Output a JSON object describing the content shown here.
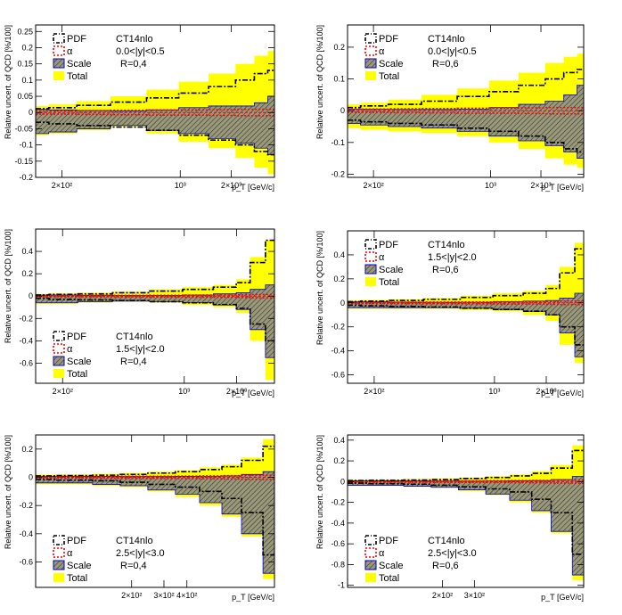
{
  "chart_data": [
    {
      "type": "area",
      "ylabel": "Relative uncert. of QCD [%/100]",
      "xlabel": "p_T [GeV/c]",
      "xscale": "log",
      "xlim": [
        140,
        3600
      ],
      "ylim": [
        -0.2,
        0.27
      ],
      "yticks": [
        "0.25",
        "0.2",
        "0.15",
        "0.1",
        "0.05",
        "0",
        "-0.05",
        "-0.1",
        "-0.15",
        "-0.2"
      ],
      "ytick_values": [
        0.25,
        0.2,
        0.15,
        0.1,
        0.05,
        0,
        -0.05,
        -0.1,
        -0.15,
        -0.2
      ],
      "xticks": [
        "2×10²",
        "10³",
        "2×10³"
      ],
      "xtick_values": [
        200,
        1000,
        2000
      ],
      "legend": [
        "PDF",
        "α",
        "Scale",
        "Total"
      ],
      "pdf_label": "CT14nlo",
      "rapidity": "0.0<|y|<0.5",
      "radius": "R=0,4",
      "legend_position": "top-left",
      "x": [
        140,
        200,
        300,
        500,
        800,
        1200,
        1800,
        2500,
        3000,
        3600
      ],
      "total_up": [
        0.02,
        0.025,
        0.035,
        0.05,
        0.07,
        0.095,
        0.12,
        0.15,
        0.175,
        0.19
      ],
      "total_down": [
        -0.07,
        -0.065,
        -0.055,
        -0.045,
        -0.065,
        -0.09,
        -0.11,
        -0.14,
        -0.17,
        -0.19
      ],
      "pdf_up": [
        0.012,
        0.015,
        0.022,
        0.032,
        0.045,
        0.06,
        0.08,
        0.1,
        0.12,
        0.13
      ],
      "pdf_down": [
        -0.03,
        -0.035,
        -0.04,
        -0.045,
        -0.055,
        -0.07,
        -0.085,
        -0.1,
        -0.12,
        -0.13
      ],
      "scale_up": [
        0.01,
        0.008,
        0.006,
        0.005,
        0.008,
        0.015,
        0.02,
        0.02,
        0.03,
        0.05
      ],
      "scale_down": [
        -0.065,
        -0.06,
        -0.05,
        -0.04,
        -0.055,
        -0.065,
        -0.08,
        -0.095,
        -0.11,
        -0.13
      ],
      "alpha_up": [
        0.005,
        0.005,
        0.006,
        0.007,
        0.008,
        0.008,
        0.009,
        0.01,
        0.01,
        0.01
      ],
      "alpha_down": [
        -0.005,
        -0.005,
        -0.006,
        -0.007,
        -0.008,
        -0.008,
        -0.009,
        -0.01,
        -0.01,
        -0.01
      ]
    },
    {
      "type": "area",
      "ylabel": "Relative uncert. of QCD [%/100]",
      "xlabel": "p_T [GeV/c]",
      "xscale": "log",
      "xlim": [
        140,
        3600
      ],
      "ylim": [
        -0.21,
        0.27
      ],
      "yticks": [
        "0.2",
        "0.1",
        "0",
        "-0.1",
        "-0.2"
      ],
      "ytick_values": [
        0.2,
        0.1,
        0,
        -0.1,
        -0.2
      ],
      "xticks": [
        "2×10²",
        "10³",
        "2×10³"
      ],
      "xtick_values": [
        200,
        1000,
        2000
      ],
      "legend": [
        "PDF",
        "α",
        "Scale",
        "Total"
      ],
      "pdf_label": "CT14nlo",
      "rapidity": "0.0<|y|<0.5",
      "radius": "R=0,6",
      "legend_position": "top-left",
      "x": [
        140,
        200,
        300,
        500,
        800,
        1200,
        1800,
        2500,
        3000,
        3600
      ],
      "total_up": [
        0.02,
        0.025,
        0.035,
        0.05,
        0.07,
        0.095,
        0.12,
        0.15,
        0.17,
        0.18
      ],
      "total_down": [
        -0.055,
        -0.06,
        -0.065,
        -0.07,
        -0.08,
        -0.1,
        -0.12,
        -0.15,
        -0.17,
        -0.18
      ],
      "pdf_up": [
        0.01,
        0.015,
        0.02,
        0.03,
        0.045,
        0.06,
        0.08,
        0.1,
        0.12,
        0.13
      ],
      "pdf_down": [
        -0.03,
        -0.035,
        -0.04,
        -0.045,
        -0.055,
        -0.065,
        -0.08,
        -0.1,
        -0.12,
        -0.13
      ],
      "scale_up": [
        0.005,
        0.005,
        0.004,
        0.004,
        0.005,
        0.01,
        0.02,
        0.03,
        0.05,
        0.08
      ],
      "scale_down": [
        -0.04,
        -0.045,
        -0.05,
        -0.055,
        -0.065,
        -0.08,
        -0.095,
        -0.11,
        -0.13,
        -0.15
      ],
      "alpha_up": [
        0.005,
        0.005,
        0.006,
        0.007,
        0.008,
        0.008,
        0.009,
        0.01,
        0.01,
        0.01
      ],
      "alpha_down": [
        -0.005,
        -0.005,
        -0.006,
        -0.007,
        -0.008,
        -0.008,
        -0.009,
        -0.01,
        -0.01,
        -0.01
      ]
    },
    {
      "type": "area",
      "ylabel": "Relative uncert. of QCD [%/100]",
      "xlabel": "p_T [GeV/c]",
      "xscale": "log",
      "xlim": [
        140,
        3300
      ],
      "ylim": [
        -0.78,
        0.6
      ],
      "yticks": [
        "0.4",
        "0.2",
        "0",
        "-0.2",
        "-0.4",
        "-0.6"
      ],
      "ytick_values": [
        0.4,
        0.2,
        0,
        -0.2,
        -0.4,
        -0.6
      ],
      "xticks": [
        "2×10²",
        "10³",
        "2×10³"
      ],
      "xtick_values": [
        200,
        1000,
        2000
      ],
      "legend": [
        "PDF",
        "α",
        "Scale",
        "Total"
      ],
      "pdf_label": "CT14nlo",
      "rapidity": "1.5<|y|<2.0",
      "radius": "R=0,4",
      "legend_position": "bottom-left",
      "x": [
        140,
        200,
        300,
        500,
        800,
        1200,
        1800,
        2200,
        2600,
        3300
      ],
      "total_up": [
        0.02,
        0.025,
        0.03,
        0.04,
        0.06,
        0.08,
        0.1,
        0.15,
        0.35,
        0.5
      ],
      "total_down": [
        -0.07,
        -0.07,
        -0.06,
        -0.05,
        -0.06,
        -0.08,
        -0.1,
        -0.15,
        -0.4,
        -0.75
      ],
      "pdf_up": [
        0.01,
        0.015,
        0.02,
        0.03,
        0.045,
        0.06,
        0.08,
        0.12,
        0.3,
        0.5
      ],
      "pdf_down": [
        -0.02,
        -0.03,
        -0.035,
        -0.04,
        -0.05,
        -0.06,
        -0.075,
        -0.11,
        -0.25,
        -0.4
      ],
      "scale_up": [
        0.01,
        0.01,
        0.008,
        0.006,
        0.006,
        0.01,
        0.02,
        0.03,
        0.06,
        0.1
      ],
      "scale_down": [
        -0.06,
        -0.06,
        -0.05,
        -0.045,
        -0.05,
        -0.06,
        -0.08,
        -0.12,
        -0.3,
        -0.55
      ],
      "alpha_up": [
        0.005,
        0.005,
        0.006,
        0.007,
        0.008,
        0.01,
        0.01,
        0.012,
        0.015,
        0.015
      ],
      "alpha_down": [
        -0.005,
        -0.005,
        -0.006,
        -0.007,
        -0.008,
        -0.01,
        -0.01,
        -0.012,
        -0.015,
        -0.015
      ]
    },
    {
      "type": "area",
      "ylabel": "Relative uncert. of QCD [%/100]",
      "xlabel": "p_T [GeV/c]",
      "xscale": "log",
      "xlim": [
        140,
        3300
      ],
      "ylim": [
        -0.67,
        0.6
      ],
      "yticks": [
        "0.4",
        "0.2",
        "0",
        "-0.2",
        "-0.4",
        "-0.6"
      ],
      "ytick_values": [
        0.4,
        0.2,
        0,
        -0.2,
        -0.4,
        -0.6
      ],
      "xticks": [
        "2×10²",
        "10³",
        "2×10³"
      ],
      "xtick_values": [
        200,
        1000,
        2000
      ],
      "legend": [
        "PDF",
        "α",
        "Scale",
        "Total"
      ],
      "pdf_label": "CT14nlo",
      "rapidity": "1.5<|y|<2.0",
      "radius": "R=0,6",
      "legend_position": "top-left",
      "x": [
        140,
        200,
        300,
        500,
        800,
        1200,
        1800,
        2200,
        2600,
        3300
      ],
      "total_up": [
        0.02,
        0.025,
        0.03,
        0.04,
        0.06,
        0.08,
        0.1,
        0.15,
        0.3,
        0.5
      ],
      "total_down": [
        -0.05,
        -0.05,
        -0.05,
        -0.05,
        -0.06,
        -0.07,
        -0.1,
        -0.15,
        -0.35,
        -0.5
      ],
      "pdf_up": [
        0.01,
        0.015,
        0.02,
        0.03,
        0.045,
        0.06,
        0.08,
        0.12,
        0.25,
        0.45
      ],
      "pdf_down": [
        -0.02,
        -0.025,
        -0.03,
        -0.035,
        -0.045,
        -0.055,
        -0.07,
        -0.1,
        -0.2,
        -0.35
      ],
      "scale_up": [
        0.008,
        0.008,
        0.006,
        0.005,
        0.005,
        0.008,
        0.015,
        0.02,
        0.04,
        0.08
      ],
      "scale_down": [
        -0.04,
        -0.04,
        -0.04,
        -0.04,
        -0.045,
        -0.055,
        -0.07,
        -0.1,
        -0.25,
        -0.45
      ],
      "alpha_up": [
        0.005,
        0.005,
        0.006,
        0.007,
        0.008,
        0.01,
        0.01,
        0.012,
        0.015,
        0.015
      ],
      "alpha_down": [
        -0.005,
        -0.005,
        -0.006,
        -0.007,
        -0.008,
        -0.01,
        -0.01,
        -0.012,
        -0.015,
        -0.015
      ]
    },
    {
      "type": "area",
      "ylabel": "Relative uncert. of QCD [%/100]",
      "xlabel": "p_T [GeV/c]",
      "xscale": "log",
      "xlim": [
        60,
        1200
      ],
      "ylim": [
        -0.78,
        0.3
      ],
      "yticks": [
        "0.2",
        "0",
        "-0.2",
        "-0.4",
        "-0.6"
      ],
      "ytick_values": [
        0.2,
        0,
        -0.2,
        -0.4,
        -0.6
      ],
      "xticks": [
        "2×10²",
        "3×10²",
        "4×10²"
      ],
      "xtick_values": [
        200,
        300,
        400
      ],
      "legend": [
        "PDF",
        "α",
        "Scale",
        "Total"
      ],
      "pdf_label": "CT14nlo",
      "rapidity": "2.5<|y|<3.0",
      "radius": "R=0,4",
      "legend_position": "bottom-left",
      "x": [
        60,
        100,
        150,
        200,
        300,
        400,
        550,
        700,
        900,
        1200
      ],
      "total_up": [
        0.02,
        0.02,
        0.025,
        0.03,
        0.04,
        0.05,
        0.07,
        0.09,
        0.14,
        0.27
      ],
      "total_down": [
        -0.05,
        -0.05,
        -0.06,
        -0.07,
        -0.1,
        -0.14,
        -0.2,
        -0.28,
        -0.42,
        -0.72
      ],
      "pdf_up": [
        0.01,
        0.012,
        0.015,
        0.02,
        0.03,
        0.04,
        0.055,
        0.075,
        0.12,
        0.22
      ],
      "pdf_down": [
        -0.015,
        -0.02,
        -0.025,
        -0.035,
        -0.05,
        -0.07,
        -0.1,
        -0.15,
        -0.25,
        -0.55
      ],
      "scale_up": [
        0.008,
        0.008,
        0.006,
        0.005,
        0.005,
        0.006,
        0.008,
        0.01,
        0.02,
        0.04
      ],
      "scale_down": [
        -0.04,
        -0.04,
        -0.05,
        -0.06,
        -0.09,
        -0.12,
        -0.18,
        -0.26,
        -0.4,
        -0.68
      ],
      "alpha_up": [
        0.005,
        0.005,
        0.006,
        0.007,
        0.008,
        0.009,
        0.01,
        0.012,
        0.014,
        0.015
      ],
      "alpha_down": [
        -0.005,
        -0.005,
        -0.006,
        -0.007,
        -0.008,
        -0.009,
        -0.01,
        -0.012,
        -0.014,
        -0.015
      ]
    },
    {
      "type": "area",
      "ylabel": "Relative uncert. of QCD [%/100]",
      "xlabel": "p_T [GeV/c]",
      "xscale": "log",
      "xlim": [
        60,
        1200
      ],
      "ylim": [
        -1.02,
        0.45
      ],
      "yticks": [
        "0.4",
        "0.2",
        "0",
        "-0.2",
        "-0.4",
        "-0.6",
        "-0.8",
        "-1"
      ],
      "ytick_values": [
        0.4,
        0.2,
        0,
        -0.2,
        -0.4,
        -0.6,
        -0.8,
        -1
      ],
      "xticks": [
        "2×10²",
        "3×10²"
      ],
      "xtick_values": [
        200,
        300
      ],
      "legend": [
        "PDF",
        "α",
        "Scale",
        "Total"
      ],
      "pdf_label": "CT14nlo",
      "rapidity": "2.5<|y|<3.0",
      "radius": "R=0,6",
      "legend_position": "bottom-left",
      "x": [
        60,
        100,
        150,
        200,
        300,
        400,
        550,
        700,
        900,
        1200
      ],
      "total_up": [
        0.02,
        0.02,
        0.025,
        0.03,
        0.04,
        0.05,
        0.07,
        0.1,
        0.16,
        0.35
      ],
      "total_down": [
        -0.04,
        -0.04,
        -0.05,
        -0.06,
        -0.09,
        -0.13,
        -0.2,
        -0.3,
        -0.5,
        -0.95
      ],
      "pdf_up": [
        0.01,
        0.012,
        0.015,
        0.02,
        0.03,
        0.04,
        0.055,
        0.08,
        0.13,
        0.3
      ],
      "pdf_down": [
        -0.015,
        -0.02,
        -0.025,
        -0.035,
        -0.05,
        -0.07,
        -0.1,
        -0.17,
        -0.3,
        -0.7
      ],
      "scale_up": [
        0.008,
        0.008,
        0.006,
        0.005,
        0.005,
        0.006,
        0.008,
        0.01,
        0.02,
        0.05
      ],
      "scale_down": [
        -0.035,
        -0.035,
        -0.045,
        -0.055,
        -0.08,
        -0.12,
        -0.18,
        -0.28,
        -0.48,
        -0.9
      ],
      "alpha_up": [
        0.005,
        0.005,
        0.006,
        0.007,
        0.008,
        0.009,
        0.01,
        0.012,
        0.014,
        0.015
      ],
      "alpha_down": [
        -0.005,
        -0.005,
        -0.006,
        -0.007,
        -0.008,
        -0.009,
        -0.01,
        -0.012,
        -0.014,
        -0.015
      ]
    }
  ],
  "colors": {
    "total": "#ffff00",
    "scale_fill": "#777777",
    "scale_edge": "#0000cc",
    "alpha": "#ff0000",
    "pdf": "#000000",
    "zero_line": "#ff0000"
  }
}
